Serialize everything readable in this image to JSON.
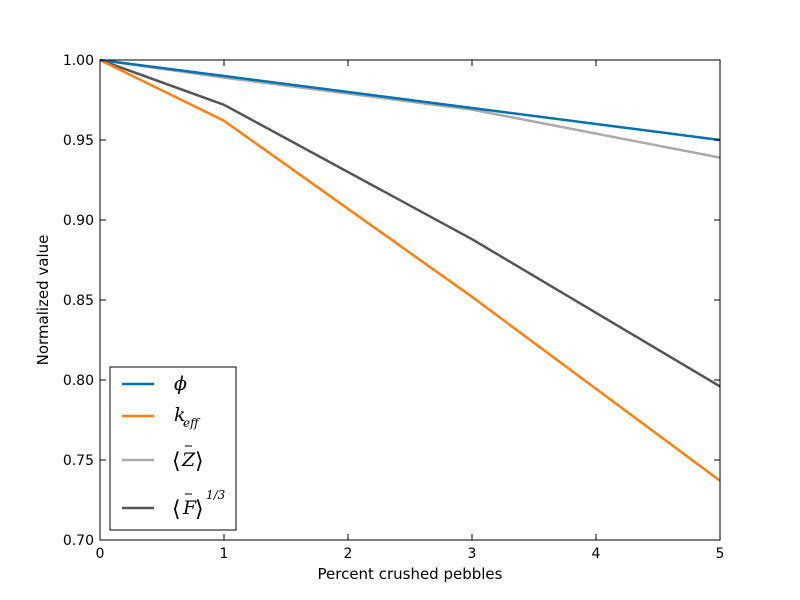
{
  "chart_data": {
    "type": "line",
    "title": "",
    "xlabel": "Percent crushed pebbles",
    "ylabel": "Normalized value",
    "xlim": [
      0,
      5
    ],
    "ylim": [
      0.7,
      1.0
    ],
    "xticks": [
      0,
      1,
      2,
      3,
      4,
      5
    ],
    "xtick_labels": [
      "0",
      "1",
      "2",
      "3",
      "4",
      "5"
    ],
    "yticks": [
      0.7,
      0.75,
      0.8,
      0.85,
      0.9,
      0.95,
      1.0
    ],
    "ytick_labels": [
      "0.70",
      "0.75",
      "0.80",
      "0.85",
      "0.90",
      "0.95",
      "1.00"
    ],
    "grid": false,
    "legend_position": "lower-left",
    "x": [
      0,
      1,
      3,
      5
    ],
    "series": [
      {
        "name": "ϕ",
        "color": "#0072b2",
        "values": [
          1.0,
          0.99,
          0.97,
          0.95
        ]
      },
      {
        "name": "k_eff",
        "color": "#ff7f0e",
        "values": [
          1.0,
          0.962,
          0.852,
          0.737
        ]
      },
      {
        "name": "⟨Z̄⟩",
        "color": "#aaaaaa",
        "values": [
          1.0,
          0.989,
          0.969,
          0.939
        ]
      },
      {
        "name": "⟨F̄⟩^(1/3)",
        "color": "#555555",
        "values": [
          1.0,
          0.972,
          0.888,
          0.796
        ]
      }
    ]
  }
}
